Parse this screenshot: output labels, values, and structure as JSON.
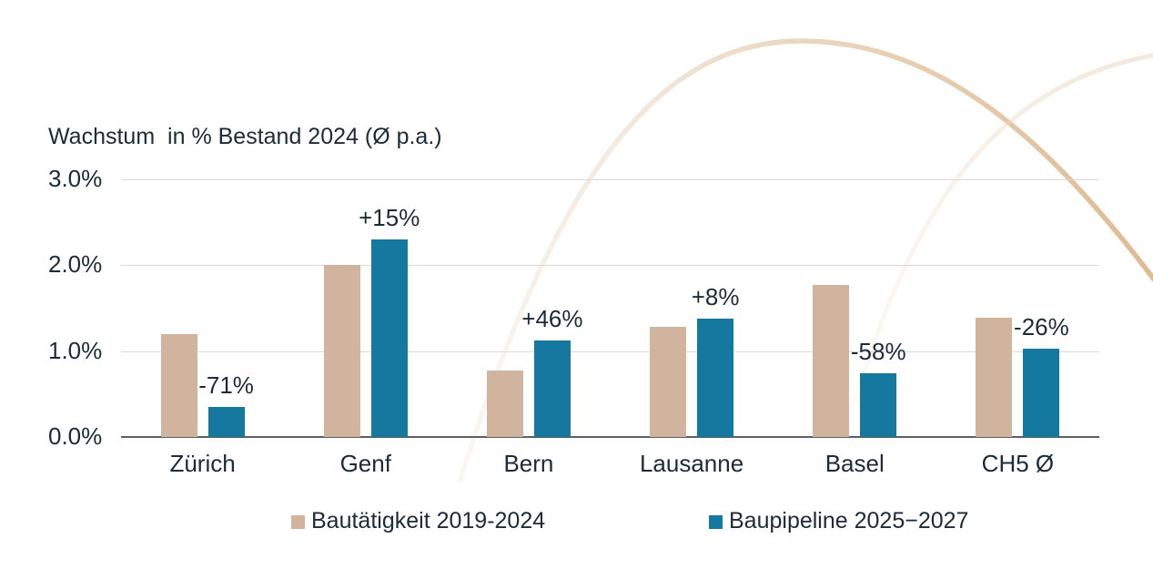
{
  "title": "Wachstum  in % Bestand 2024 (Ø p.a.)",
  "colors": {
    "series1": "#d1b49e",
    "series2": "#15789e",
    "text": "#1c2b3a",
    "gridline": "#d9d9d9",
    "axis_line": "#596066",
    "arc_decorative": "#dcb993"
  },
  "legend": {
    "item1": "Bautätigkeit 2019-2024",
    "item2": "Baupipeline 2025−2027"
  },
  "chart_data": {
    "type": "bar",
    "title": "Wachstum  in % Bestand 2024 (Ø p.a.)",
    "xlabel": "",
    "ylabel": "Wachstum in % Bestand 2024 (Ø p.a.)",
    "categories": [
      "Zürich",
      "Genf",
      "Bern",
      "Lausanne",
      "Basel",
      "CH5 Ø"
    ],
    "series": [
      {
        "name": "Bautätigkeit 2019-2024",
        "color": "#d1b49e",
        "values": [
          1.2,
          2.0,
          0.77,
          1.28,
          1.77,
          1.39
        ]
      },
      {
        "name": "Baupipeline 2025−2027",
        "color": "#15789e",
        "values": [
          0.35,
          2.3,
          1.12,
          1.38,
          0.74,
          1.03
        ],
        "labels": [
          "-71%",
          "+15%",
          "+46%",
          "+8%",
          "-58%",
          "-26%"
        ]
      }
    ],
    "ylim": [
      0,
      3
    ],
    "yticks": [
      {
        "value": 3,
        "label": "3.0%"
      },
      {
        "value": 2,
        "label": "2.0%"
      },
      {
        "value": 1,
        "label": "1.0%"
      },
      {
        "value": 0,
        "label": "0.0%"
      }
    ],
    "grid": true,
    "legend_position": "bottom"
  }
}
